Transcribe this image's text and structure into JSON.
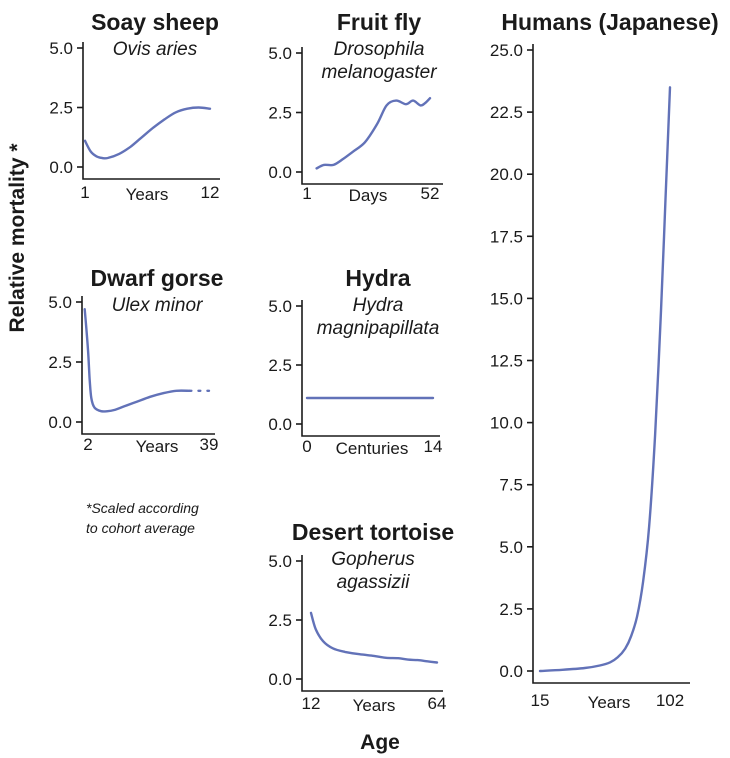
{
  "figure": {
    "ylabel": "Relative mortality *",
    "xlabel": "Age",
    "footnote_lines": [
      "*Scaled according",
      "to cohort average"
    ],
    "line_color": "#6272b8"
  },
  "chart_data": [
    {
      "id": "sheep",
      "type": "line",
      "title": "Soay sheep",
      "species_lines": [
        "Ovis aries"
      ],
      "x_unit": "Years",
      "x_ticks": [
        "1",
        "12"
      ],
      "xlim": [
        1,
        12
      ],
      "y_ticks": [
        "0.0",
        "2.5",
        "5.0"
      ],
      "ylim": [
        0,
        5
      ],
      "series": [
        {
          "x": [
            1,
            1.5,
            2,
            2.5,
            3,
            4,
            5,
            6,
            7,
            8,
            9,
            10,
            11,
            12
          ],
          "y": [
            1.1,
            0.65,
            0.45,
            0.38,
            0.38,
            0.55,
            0.85,
            1.25,
            1.65,
            2.0,
            2.3,
            2.45,
            2.5,
            2.45
          ]
        }
      ]
    },
    {
      "id": "fly",
      "type": "line",
      "title": "Fruit fly",
      "species_lines": [
        "Drosophila",
        "melanogaster"
      ],
      "x_unit": "Days",
      "x_ticks": [
        "1",
        "52"
      ],
      "xlim": [
        1,
        52
      ],
      "y_ticks": [
        "0.0",
        "2.5",
        "5.0"
      ],
      "ylim": [
        0,
        5
      ],
      "series": [
        {
          "x": [
            5,
            8,
            12,
            16,
            20,
            25,
            30,
            34,
            38,
            42,
            45,
            48,
            50,
            52
          ],
          "y": [
            0.15,
            0.3,
            0.3,
            0.55,
            0.85,
            1.25,
            2.0,
            2.8,
            3.0,
            2.85,
            3.0,
            2.8,
            2.9,
            3.1
          ]
        }
      ]
    },
    {
      "id": "gorse",
      "type": "line",
      "title": "Dwarf gorse",
      "species_lines": [
        "Ulex minor"
      ],
      "x_unit": "Years",
      "x_ticks": [
        "2",
        "39"
      ],
      "xlim": [
        2,
        39
      ],
      "y_ticks": [
        "0.0",
        "2.5",
        "5.0"
      ],
      "ylim": [
        0,
        5
      ],
      "series": [
        {
          "x": [
            1,
            2,
            2.5,
            3,
            4,
            6,
            8,
            10,
            13,
            17,
            21,
            25,
            29,
            33
          ],
          "y": [
            4.7,
            3.0,
            1.8,
            1.0,
            0.6,
            0.45,
            0.45,
            0.5,
            0.65,
            0.85,
            1.05,
            1.2,
            1.3,
            1.3
          ]
        },
        {
          "x": [
            33,
            36,
            39
          ],
          "y": [
            1.3,
            1.3,
            1.3
          ],
          "style": "dotted"
        }
      ]
    },
    {
      "id": "hydra",
      "type": "line",
      "title": "Hydra",
      "species_lines": [
        "Hydra",
        "magnipapillata"
      ],
      "x_unit": "Centuries",
      "x_ticks": [
        "0",
        "14"
      ],
      "xlim": [
        0,
        14
      ],
      "y_ticks": [
        "0.0",
        "2.5",
        "5.0"
      ],
      "ylim": [
        0,
        5
      ],
      "series": [
        {
          "x": [
            0,
            14
          ],
          "y": [
            1.1,
            1.1
          ]
        }
      ]
    },
    {
      "id": "tortoise",
      "type": "line",
      "title": "Desert tortoise",
      "species_lines": [
        "Gopherus",
        "agassizii"
      ],
      "x_unit": "Years",
      "x_ticks": [
        "12",
        "64"
      ],
      "xlim": [
        12,
        64
      ],
      "y_ticks": [
        "0.0",
        "2.5",
        "5.0"
      ],
      "ylim": [
        0,
        5
      ],
      "series": [
        {
          "x": [
            12,
            14,
            17,
            21,
            26,
            32,
            38,
            43,
            48,
            52,
            56,
            60,
            64
          ],
          "y": [
            2.8,
            2.1,
            1.6,
            1.3,
            1.15,
            1.05,
            0.98,
            0.9,
            0.88,
            0.82,
            0.8,
            0.75,
            0.7
          ]
        }
      ]
    },
    {
      "id": "humans",
      "type": "line",
      "title": "Humans (Japanese)",
      "species_lines": [],
      "x_unit": "Years",
      "x_ticks": [
        "15",
        "102"
      ],
      "xlim": [
        15,
        102
      ],
      "y_ticks": [
        "0.0",
        "2.5",
        "5.0",
        "7.5",
        "10.0",
        "12.5",
        "15.0",
        "17.5",
        "20.0",
        "22.5",
        "25.0"
      ],
      "ylim": [
        0,
        25
      ],
      "series": [
        {
          "x": [
            15,
            30,
            45,
            55,
            62,
            67,
            72,
            76,
            80,
            84,
            88,
            92,
            96,
            99,
            102
          ],
          "y": [
            0.0,
            0.05,
            0.12,
            0.22,
            0.35,
            0.55,
            0.9,
            1.4,
            2.2,
            3.6,
            5.8,
            9.5,
            14.5,
            19.0,
            23.5
          ]
        }
      ]
    }
  ]
}
